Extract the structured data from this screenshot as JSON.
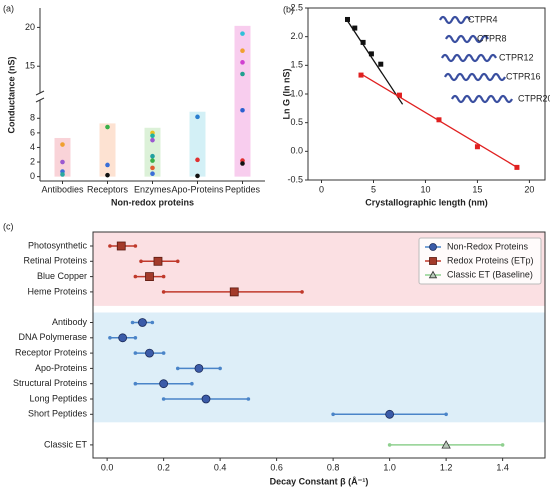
{
  "chart_data": [
    {
      "type": "bar",
      "panel_label": "(a)",
      "ylabel": "Conductance (nS)",
      "xlabel": "Non-redox proteins",
      "categories": [
        "Antibodies",
        "Receptors",
        "Enzymes",
        "Apo-Proteins",
        "Peptides"
      ],
      "values": [
        5.3,
        7.3,
        6.7,
        8.9,
        20.2
      ],
      "colors": [
        "#f9d3d8",
        "#fde2d2",
        "#dcf1d8",
        "#d3f0f6",
        "#f8cdee"
      ],
      "points": [
        [
          4.4,
          2.0,
          0.7,
          0.3
        ],
        [
          6.8,
          1.6,
          0.2
        ],
        [
          6.0,
          5.6,
          5.0,
          2.8,
          2.2,
          1.2,
          0.4
        ],
        [
          8.2,
          2.3,
          0.1
        ],
        [
          19.2,
          17.0,
          15.5,
          14.0,
          9.1,
          2.2,
          1.8
        ]
      ],
      "point_colors": [
        [
          "#f0a030",
          "#9b59d0",
          "#3a6fd8",
          "#2aa8a0"
        ],
        [
          "#3ab04a",
          "#3a6fd8",
          "#111111"
        ],
        [
          "#e8c020",
          "#20b0a0",
          "#9b59d0",
          "#20a0a0",
          "#3ab04a",
          "#e05a30",
          "#3a6fd8"
        ],
        [
          "#2a7fd0",
          "#e03030",
          "#111111"
        ],
        [
          "#30c0d8",
          "#f0a030",
          "#d040d0",
          "#20a090",
          "#2a60d0",
          "#e03030",
          "#111111"
        ]
      ],
      "ylim": [
        -0.6,
        22.5
      ],
      "ybreak": [
        9,
        14
      ],
      "yticks": [
        0,
        2,
        4,
        6,
        8,
        15,
        20
      ]
    },
    {
      "type": "scatter",
      "panel_label": "(b)",
      "ylabel": "Ln G (ln nS)",
      "xlabel": "Crystallographic length (nm)",
      "series": [
        {
          "color": "#111111",
          "x": [
            2.5,
            3.2,
            4.0,
            4.8,
            5.7
          ],
          "values": [
            2.3,
            2.15,
            1.9,
            1.7,
            1.52
          ]
        },
        {
          "color": "#e02020",
          "x": [
            3.8,
            7.5,
            11.3,
            15.0,
            18.8
          ],
          "values": [
            1.33,
            0.98,
            0.55,
            0.08,
            -0.28
          ]
        }
      ],
      "fits": [
        {
          "color": "#111111",
          "x": [
            2.3,
            7.8
          ],
          "values": [
            2.33,
            0.82
          ]
        },
        {
          "color": "#e02020",
          "x": [
            3.8,
            19.0
          ],
          "values": [
            1.35,
            -0.3
          ]
        }
      ],
      "structures": [
        "CTPR4",
        "CTPR8",
        "CTPR12",
        "CTPR16",
        "CTPR20"
      ],
      "xlim": [
        -1.3,
        21.5
      ],
      "xticks": [
        0,
        5,
        10,
        15,
        20
      ],
      "ylim": [
        -0.5,
        2.5
      ],
      "yticks": [
        -0.5,
        {
          "value": 0,
          "label": "0.0"
        },
        0.5,
        {
          "value": 1,
          "label": "1.0"
        },
        1.5,
        {
          "value": 2,
          "label": "2.0"
        },
        2.5
      ]
    },
    {
      "type": "dot",
      "panel_label": "(c)",
      "xlabel": "Decay Constant β (Å⁻¹)",
      "categories": [
        "Photosynthetic",
        "Retinal Proteins",
        "Blue Copper",
        "Heme Proteins",
        null,
        "Antibody",
        "DNA Polymerase",
        "Receptor Proteins",
        "Apo-Proteins",
        "Structural Proteins",
        "Long Peptides",
        "Short Peptides",
        null,
        "Classic ET"
      ],
      "series": [
        {
          "name": "Non-Redox Proteins",
          "color": "#3b5ba8",
          "line_color": "#4a84c8",
          "marker": "circle",
          "values": [
            null,
            null,
            null,
            null,
            null,
            0.125,
            0.055,
            0.15,
            0.325,
            0.2,
            0.35,
            1.0,
            null,
            null
          ],
          "low": [
            null,
            null,
            null,
            null,
            null,
            0.09,
            0.01,
            0.1,
            0.25,
            0.1,
            0.2,
            0.8,
            null,
            null
          ],
          "high": [
            null,
            null,
            null,
            null,
            null,
            0.16,
            0.1,
            0.2,
            0.4,
            0.3,
            0.5,
            1.2,
            null,
            null
          ]
        },
        {
          "name": "Redox Proteins (ETp)",
          "color": "#a33a2a",
          "line_color": "#c0392b",
          "marker": "square",
          "values": [
            0.05,
            0.18,
            0.15,
            0.45,
            null,
            null,
            null,
            null,
            null,
            null,
            null,
            null,
            null,
            null
          ],
          "low": [
            0.01,
            0.12,
            0.1,
            0.2,
            null,
            null,
            null,
            null,
            null,
            null,
            null,
            null,
            null,
            null
          ],
          "high": [
            0.1,
            0.25,
            0.2,
            0.69,
            null,
            null,
            null,
            null,
            null,
            null,
            null,
            null,
            null,
            null
          ]
        },
        {
          "name": "Classic ET (Baseline)",
          "color": "#8a9a8a",
          "line_color": "#8fd08f",
          "marker": "triangle",
          "values": [
            null,
            null,
            null,
            null,
            null,
            null,
            null,
            null,
            null,
            null,
            null,
            null,
            null,
            1.2
          ],
          "low": [
            null,
            null,
            null,
            null,
            null,
            null,
            null,
            null,
            null,
            null,
            null,
            null,
            null,
            1.0
          ],
          "high": [
            null,
            null,
            null,
            null,
            null,
            null,
            null,
            null,
            null,
            null,
            null,
            null,
            null,
            1.4
          ]
        }
      ],
      "xlim": [
        -0.05,
        1.55
      ],
      "xticks": [
        {
          "value": 0,
          "label": "0.0"
        },
        0.2,
        0.4,
        0.6,
        0.8,
        {
          "value": 1,
          "label": "1.0"
        },
        1.2,
        1.4
      ],
      "legend": "upper right"
    }
  ]
}
